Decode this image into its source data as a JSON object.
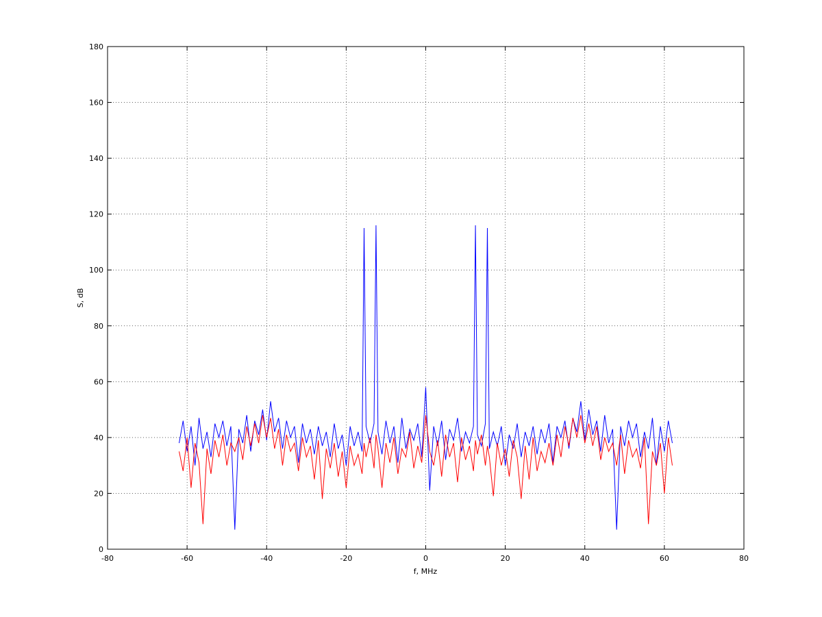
{
  "chart_data": {
    "type": "line",
    "xlabel": "f, MHz",
    "ylabel": "S, dB",
    "xlim": [
      -80,
      80
    ],
    "xticks": [
      -80,
      -60,
      -40,
      -20,
      0,
      20,
      40,
      60,
      80
    ],
    "ylim": [
      0,
      180
    ],
    "yticks": [
      0,
      20,
      40,
      60,
      80,
      100,
      120,
      140,
      160,
      180
    ],
    "grid": true,
    "x": [
      -62,
      -61,
      -60,
      -59,
      -58,
      -57,
      -56,
      -55,
      -54,
      -53,
      -52,
      -51,
      -50,
      -49,
      -48,
      -47,
      -46,
      -45,
      -44,
      -43,
      -42,
      -41,
      -40,
      -39,
      -38,
      -37,
      -36,
      -35,
      -34,
      -33,
      -32,
      -31,
      -30,
      -29,
      -28,
      -27,
      -26,
      -25,
      -24,
      -23,
      -22,
      -21,
      -20,
      -19,
      -18,
      -17,
      -16,
      -15.5,
      -15,
      -14,
      -13,
      -12.5,
      -12,
      -11,
      -10,
      -9,
      -8,
      -7,
      -6,
      -5,
      -4,
      -3,
      -2,
      -1,
      0,
      1,
      2,
      3,
      4,
      5,
      6,
      7,
      8,
      9,
      10,
      11,
      12,
      12.5,
      13,
      14,
      15,
      15.5,
      16,
      17,
      18,
      19,
      20,
      21,
      22,
      23,
      24,
      25,
      26,
      27,
      28,
      29,
      30,
      31,
      32,
      33,
      34,
      35,
      36,
      37,
      38,
      39,
      40,
      41,
      42,
      43,
      44,
      45,
      46,
      47,
      48,
      49,
      50,
      51,
      52,
      53,
      54,
      55,
      56,
      57,
      58,
      59,
      60,
      61,
      62
    ],
    "series": [
      {
        "name": "blue",
        "color": "#0000ff",
        "values": [
          38,
          46,
          35,
          44,
          30,
          47,
          36,
          42,
          33,
          45,
          40,
          46,
          37,
          44,
          7,
          43,
          38,
          48,
          35,
          46,
          41,
          50,
          39,
          53,
          42,
          47,
          36,
          46,
          40,
          44,
          31,
          45,
          38,
          43,
          34,
          44,
          37,
          42,
          33,
          45,
          36,
          41,
          30,
          44,
          37,
          42,
          35,
          115,
          44,
          38,
          45,
          116,
          42,
          34,
          46,
          38,
          44,
          31,
          47,
          36,
          43,
          39,
          45,
          33,
          58,
          21,
          44,
          37,
          46,
          32,
          43,
          39,
          47,
          35,
          42,
          38,
          44,
          116,
          41,
          37,
          45,
          115,
          36,
          42,
          37,
          44,
          30,
          41,
          36,
          45,
          33,
          42,
          37,
          44,
          34,
          43,
          38,
          45,
          31,
          44,
          40,
          46,
          36,
          47,
          42,
          53,
          39,
          50,
          41,
          46,
          35,
          48,
          38,
          43,
          7,
          44,
          37,
          46,
          40,
          45,
          33,
          42,
          36,
          47,
          30,
          44,
          35,
          46,
          38
        ]
      },
      {
        "name": "red",
        "color": "#ff0000",
        "values": [
          35,
          28,
          40,
          22,
          38,
          31,
          9,
          36,
          27,
          39,
          33,
          41,
          30,
          38,
          35,
          40,
          32,
          44,
          37,
          45,
          38,
          48,
          40,
          47,
          36,
          43,
          30,
          41,
          35,
          38,
          28,
          40,
          33,
          37,
          25,
          39,
          18,
          36,
          29,
          38,
          26,
          35,
          22,
          37,
          30,
          34,
          27,
          38,
          33,
          40,
          29,
          41,
          36,
          22,
          38,
          31,
          40,
          27,
          36,
          33,
          42,
          29,
          37,
          31,
          48,
          35,
          30,
          39,
          26,
          41,
          33,
          38,
          24,
          40,
          32,
          37,
          28,
          39,
          34,
          41,
          30,
          37,
          33,
          19,
          38,
          30,
          36,
          26,
          39,
          33,
          18,
          37,
          25,
          40,
          28,
          35,
          31,
          38,
          30,
          41,
          33,
          44,
          37,
          47,
          40,
          48,
          38,
          45,
          37,
          44,
          32,
          40,
          35,
          38,
          30,
          41,
          27,
          39,
          33,
          36,
          29,
          40,
          9,
          35,
          30,
          38,
          20,
          40,
          30
        ]
      }
    ]
  }
}
